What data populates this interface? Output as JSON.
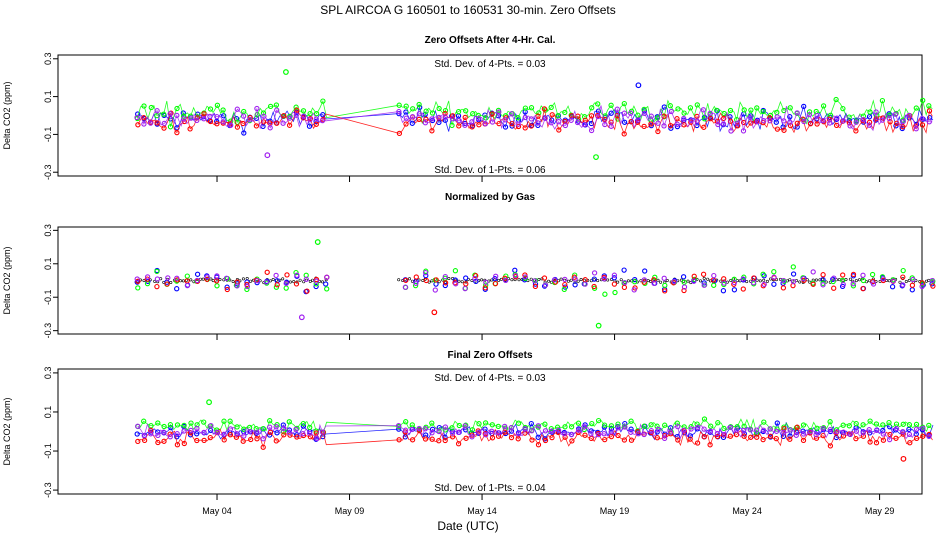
{
  "chart_data": {
    "type": "scatter",
    "title": "SPL   AIRCOA G   160501 to 160531   30-min. Zero Offsets",
    "xlabel": "Date (UTC)",
    "x_range_days": [
      -3.0,
      29.6
    ],
    "x_ticks": [
      {
        "label": "May 04",
        "day": 3
      },
      {
        "label": "May 09",
        "day": 8
      },
      {
        "label": "May 14",
        "day": 13
      },
      {
        "label": "May 19",
        "day": 18
      },
      {
        "label": "May 24",
        "day": 23
      },
      {
        "label": "May 29",
        "day": 28
      }
    ],
    "gap_days": [
      7.2,
      9.8
    ],
    "data_range_days": [
      0.0,
      30.0
    ],
    "series_colors": {
      "blue": "#0000ff",
      "green": "#00ff00",
      "red": "#ff0000",
      "purple": "#a020f0",
      "black": "#000000"
    },
    "panels": [
      {
        "id": "after-cal",
        "title": "Zero Offsets After 4-Hr. Cal.",
        "ylabel": "Delta CO2 (ppm)",
        "ylim": [
          -0.32,
          0.32
        ],
        "yticks": [
          "0.3",
          "0.1",
          "-0.1",
          "-0.3"
        ],
        "yticks_values": [
          0.3,
          0.1,
          -0.1,
          -0.3
        ],
        "annotation_top": "Std. Dev. of 4-Pts. = 0.03",
        "annotation_bottom": "Std. Dev. of 1-Pts. = 0.06",
        "series": [
          {
            "name": "blue",
            "center": -0.02,
            "spread": 0.05
          },
          {
            "name": "green",
            "center": 0.02,
            "spread": 0.05
          },
          {
            "name": "red",
            "center": -0.04,
            "spread": 0.05
          },
          {
            "name": "purple",
            "center": -0.02,
            "spread": 0.045
          }
        ],
        "extremes": [
          {
            "day": 5.6,
            "value": 0.23,
            "series": "green"
          },
          {
            "day": 17.3,
            "value": -0.22,
            "series": "green"
          },
          {
            "day": 4.9,
            "value": -0.21,
            "series": "purple"
          },
          {
            "day": 18.9,
            "value": 0.16,
            "series": "blue"
          }
        ]
      },
      {
        "id": "normalized",
        "title": "Normalized by Gas",
        "ylabel": "Delta CO2 (ppm)",
        "ylim": [
          -0.32,
          0.32
        ],
        "yticks": [
          "0.3",
          "0.1",
          "-0.1",
          "-0.3"
        ],
        "yticks_values": [
          0.3,
          0.1,
          -0.1,
          -0.3
        ],
        "series": [
          {
            "name": "black",
            "center": 0.0,
            "spread": 0.012
          },
          {
            "name": "blue",
            "center": 0.0,
            "spread": 0.05
          },
          {
            "name": "green",
            "center": 0.0,
            "spread": 0.06
          },
          {
            "name": "red",
            "center": -0.01,
            "spread": 0.05
          },
          {
            "name": "purple",
            "center": 0.0,
            "spread": 0.05
          }
        ],
        "extremes": [
          {
            "day": 6.8,
            "value": 0.23,
            "series": "green"
          },
          {
            "day": 17.4,
            "value": -0.27,
            "series": "green"
          },
          {
            "day": 6.2,
            "value": -0.22,
            "series": "purple"
          },
          {
            "day": 11.2,
            "value": -0.19,
            "series": "red"
          }
        ]
      },
      {
        "id": "final",
        "title": "Final Zero Offsets",
        "ylabel": "Delta CO2 (ppm)",
        "ylim": [
          -0.32,
          0.32
        ],
        "yticks": [
          "0.3",
          "0.1",
          "-0.1",
          "-0.3"
        ],
        "yticks_values": [
          0.3,
          0.1,
          -0.1,
          -0.3
        ],
        "annotation_top": "Std. Dev. of 4-Pts. = 0.03",
        "annotation_bottom": "Std. Dev. of 1-Pts. = 0.04",
        "series": [
          {
            "name": "blue",
            "center": 0.0,
            "spread": 0.03
          },
          {
            "name": "green",
            "center": 0.03,
            "spread": 0.03
          },
          {
            "name": "red",
            "center": -0.03,
            "spread": 0.035
          },
          {
            "name": "purple",
            "center": 0.0,
            "spread": 0.03
          }
        ],
        "extremes": [
          {
            "day": 2.7,
            "value": 0.15,
            "series": "green"
          },
          {
            "day": 28.9,
            "value": -0.14,
            "series": "red"
          }
        ]
      }
    ]
  }
}
